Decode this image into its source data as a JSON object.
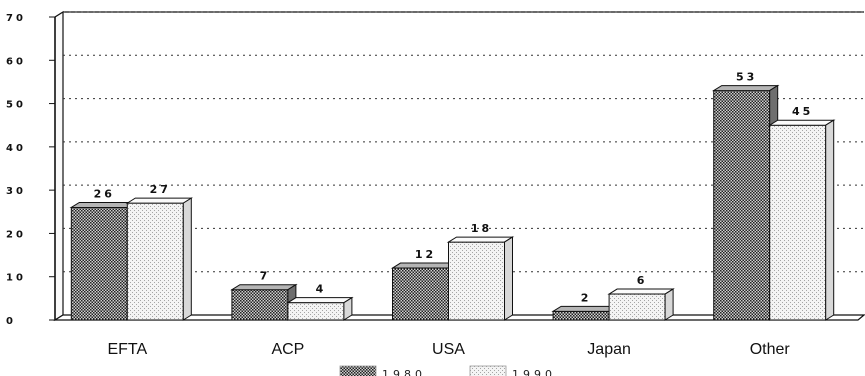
{
  "chart_data": {
    "type": "bar",
    "title": "",
    "xlabel": "",
    "ylabel": "",
    "categories": [
      "EFTA",
      "ACP",
      "USA",
      "Japan",
      "Other"
    ],
    "series": [
      {
        "name": "1980",
        "values": [
          26,
          7,
          12,
          2,
          53
        ],
        "pattern": "dark-checker"
      },
      {
        "name": "1990",
        "values": [
          27,
          4,
          18,
          6,
          45
        ],
        "pattern": "light-dotted"
      }
    ],
    "value_labels": [
      [
        "26",
        "7",
        "12",
        "2",
        "53"
      ],
      [
        "27",
        "4",
        "18",
        "6",
        "45"
      ]
    ],
    "ylim": [
      0,
      70
    ],
    "yticks": [
      0,
      10,
      20,
      30,
      40,
      50,
      60,
      70
    ],
    "grid": "horizontal dotted",
    "legend_position": "bottom-center",
    "colors": {
      "dark": "#8f8f8f",
      "light": "#eeeeee",
      "outline": "#111111"
    }
  }
}
